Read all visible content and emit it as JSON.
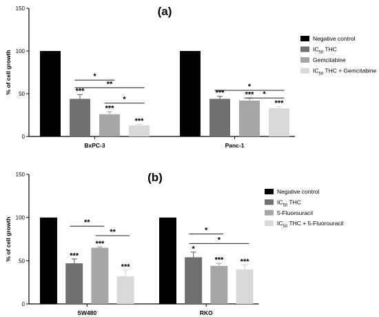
{
  "chart_data": [
    {
      "type": "bar",
      "title": "(a)",
      "ylabel": "% of cell growth",
      "ylim": [
        0,
        150
      ],
      "yticks": [
        0,
        50,
        100,
        150
      ],
      "categories": [
        "BxPC-3",
        "Panc-1"
      ],
      "series": [
        {
          "name": "Negative control",
          "color": "#000000",
          "values": [
            100,
            100
          ],
          "errors": [
            0,
            0
          ],
          "sig": [
            "",
            ""
          ]
        },
        {
          "name": "IC50 THC",
          "color": "#707070",
          "values": [
            44,
            44
          ],
          "errors": [
            5,
            3
          ],
          "sig": [
            "***",
            "***"
          ]
        },
        {
          "name": "Gemcitabine",
          "color": "#a6a6a6",
          "values": [
            26,
            42
          ],
          "errors": [
            3,
            3
          ],
          "sig": [
            "***",
            "***"
          ]
        },
        {
          "name": "IC50 THC + Gemcitabine",
          "color": "#d9d9d9",
          "values": [
            13,
            33
          ],
          "errors": [
            1,
            2
          ],
          "sig": [
            "***",
            "***"
          ]
        }
      ],
      "comparisons": [
        {
          "category": 0,
          "from": 1,
          "to": 2,
          "y": 66,
          "label": "*"
        },
        {
          "category": 0,
          "from": 1,
          "to": 3,
          "y": 57,
          "label": "**"
        },
        {
          "category": 0,
          "from": 2,
          "to": 3,
          "y": 39,
          "label": "*"
        },
        {
          "category": 1,
          "from": 1,
          "to": 3,
          "y": 54,
          "label": "*"
        },
        {
          "category": 1,
          "from": 2,
          "to": 3,
          "y": 45,
          "label": "*"
        }
      ],
      "legend": {
        "position": "right",
        "items": [
          {
            "main": "Negative control",
            "sub": "",
            "rest": ""
          },
          {
            "main": "IC",
            "sub": "50",
            "rest": " THC"
          },
          {
            "main": "Gemcitabine",
            "sub": "",
            "rest": ""
          },
          {
            "main": "IC",
            "sub": "50",
            "rest": " THC + Gemcitabine"
          }
        ]
      }
    },
    {
      "type": "bar",
      "title": "(b)",
      "ylabel": "% of cell growth",
      "ylim": [
        0,
        150
      ],
      "yticks": [
        0,
        50,
        100,
        150
      ],
      "categories": [
        "SW480",
        "RKO"
      ],
      "series": [
        {
          "name": "Negative control",
          "color": "#000000",
          "values": [
            100,
            100
          ],
          "errors": [
            0,
            0
          ],
          "sig": [
            "",
            ""
          ]
        },
        {
          "name": "IC50 THC",
          "color": "#707070",
          "values": [
            47,
            54
          ],
          "errors": [
            5,
            6
          ],
          "sig": [
            "***",
            "*"
          ]
        },
        {
          "name": "5-Fluorouracil",
          "color": "#a6a6a6",
          "values": [
            65,
            44
          ],
          "errors": [
            1,
            3
          ],
          "sig": [
            "***",
            "***"
          ]
        },
        {
          "name": "IC50 THC + 5-Fluorouracil",
          "color": "#d9d9d9",
          "values": [
            32,
            40
          ],
          "errors": [
            7,
            5
          ],
          "sig": [
            "***",
            "***"
          ]
        }
      ],
      "comparisons": [
        {
          "category": 0,
          "from": 1,
          "to": 2,
          "y": 90,
          "label": "**"
        },
        {
          "category": 0,
          "from": 2,
          "to": 3,
          "y": 79,
          "label": "**"
        },
        {
          "category": 1,
          "from": 1,
          "to": 2,
          "y": 81,
          "label": "*"
        },
        {
          "category": 1,
          "from": 1,
          "to": 3,
          "y": 70,
          "label": "*"
        }
      ],
      "legend": {
        "position": "right",
        "items": [
          {
            "main": "Negative control",
            "sub": "",
            "rest": ""
          },
          {
            "main": "IC",
            "sub": "50",
            "rest": " THC"
          },
          {
            "main": "5-Fluorouracil",
            "sub": "",
            "rest": ""
          },
          {
            "main": "IC",
            "sub": "50",
            "rest": " THC + 5-Fluorouracil"
          }
        ]
      }
    }
  ]
}
